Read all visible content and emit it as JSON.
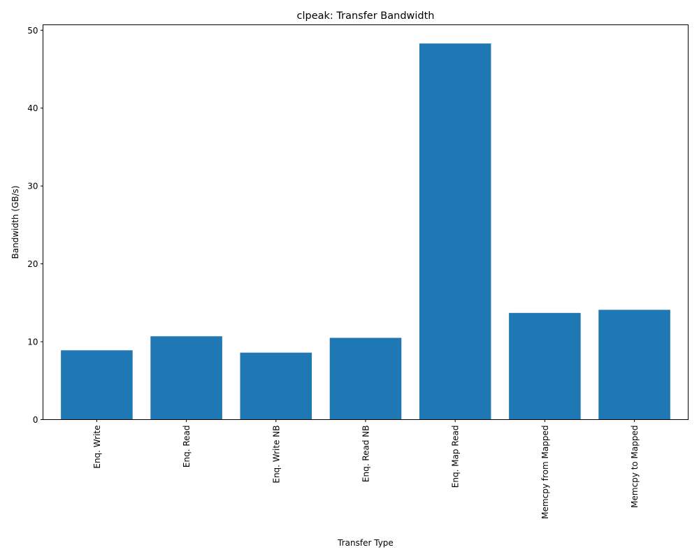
{
  "chart_data": {
    "type": "bar",
    "title": "clpeak: Transfer Bandwidth",
    "xlabel": "Transfer Type",
    "ylabel": "Bandwidth (GB/s)",
    "categories": [
      "Enq. Write",
      "Enq. Read",
      "Enq. Write NB",
      "Enq. Read NB",
      "Enq. Map Read",
      "Memcpy from Mapped",
      "Memcpy to Mapped"
    ],
    "values": [
      8.9,
      10.7,
      8.6,
      10.5,
      48.3,
      13.7,
      14.1
    ],
    "ylim": [
      0,
      50.7
    ],
    "yticks": [
      0,
      10,
      20,
      30,
      40,
      50
    ],
    "grid": false,
    "bar_color": "#1f77b4"
  }
}
